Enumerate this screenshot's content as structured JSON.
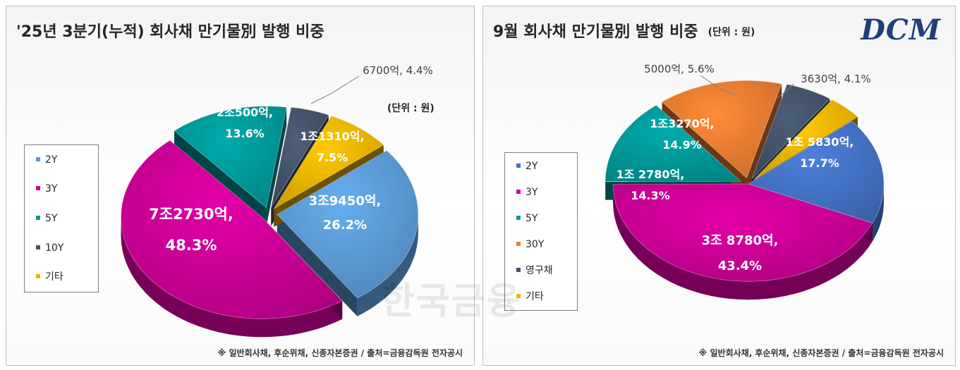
{
  "chart_data": [
    {
      "type": "pie",
      "title": "'25년 3분기(누적) 회사채 만기물別 발행 비중",
      "unit": "(단위 : 원)",
      "categories": [
        "2Y",
        "3Y",
        "5Y",
        "10Y",
        "기타"
      ],
      "values": [
        26.2,
        48.3,
        13.6,
        4.4,
        7.5
      ],
      "labels": [
        [
          "3조9450억,",
          "26.2%"
        ],
        [
          "7조2730억,",
          "48.3%"
        ],
        [
          "2조500억,",
          "13.6%"
        ],
        [
          "6700억, 4.4%"
        ],
        [
          "1조1310억,",
          "7.5%"
        ]
      ],
      "colors": [
        "#5b9bd5",
        "#cc0096",
        "#009999",
        "#44546a",
        "#f0b400"
      ],
      "exploded": [
        "2Y",
        "3Y",
        "5Y",
        "10Y",
        "기타"
      ],
      "legend": "left",
      "note": "※ 일반회사채, 후순위채, 신종자본증권 / 출처=금융감독원 전자공시"
    },
    {
      "type": "pie",
      "title": "9월 회사채 만기물別 발행 비중",
      "unit": "(단위 : 원)",
      "categories": [
        "2Y",
        "3Y",
        "5Y",
        "30Y",
        "영구채",
        "기타"
      ],
      "values": [
        17.7,
        43.4,
        14.3,
        14.9,
        5.6,
        4.1
      ],
      "labels": [
        [
          "1조 5830억,",
          "17.7%"
        ],
        [
          "3조 8780억,",
          "43.4%"
        ],
        [
          "1조 2780억,",
          "14.3%"
        ],
        [
          "1조3270억,",
          "14.9%"
        ],
        [
          "5000억, 5.6%"
        ],
        [
          "3630억, 4.1%"
        ]
      ],
      "colors": [
        "#4472c4",
        "#cc0096",
        "#009999",
        "#ed7d31",
        "#44546a",
        "#f0b400"
      ],
      "exploded": [
        "5Y",
        "30Y",
        "영구채",
        "기타"
      ],
      "legend": "left",
      "note": "※ 일반회사채, 후순위채, 신종자본증권 / 출처=금융감독원 전자공시"
    }
  ],
  "logo_text": "DCM",
  "watermark_text": "한국금융"
}
